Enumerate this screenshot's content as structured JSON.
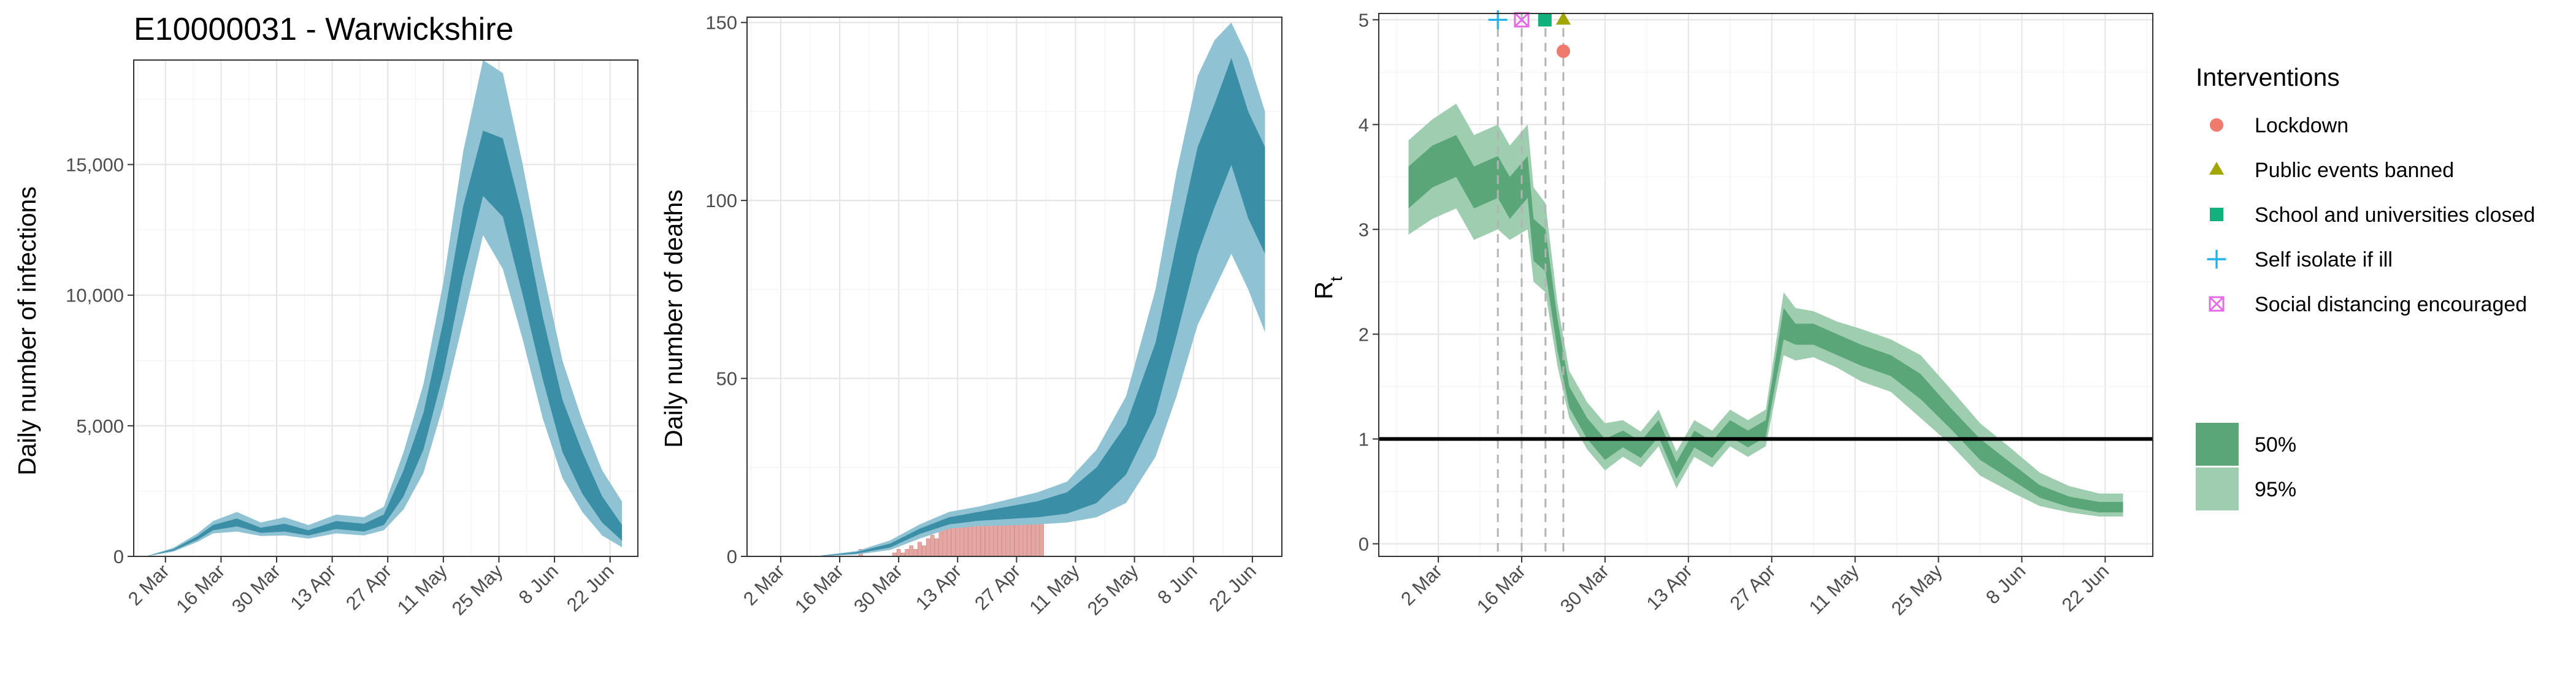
{
  "chart_data": [
    {
      "type": "area",
      "title": "E10000031 - Warwickshire",
      "xlabel": "",
      "ylabel": "Daily number of infections",
      "x_ticks": [
        "2 Mar",
        "16 Mar",
        "30 Mar",
        "13 Apr",
        "27 Apr",
        "11 May",
        "25 May",
        "8 Jun",
        "22 Jun"
      ],
      "y_ticks": [
        "0",
        "5,000",
        "10,000",
        "15,000"
      ],
      "ylim": [
        0,
        19000
      ],
      "grid": true,
      "colors": {
        "band_95": "#8fc2d3",
        "band_50": "#3a8ea6"
      },
      "series": [
        {
          "x": [
            "2020-02-26",
            "2020-03-04",
            "2020-03-10",
            "2020-03-14",
            "2020-03-20",
            "2020-03-26",
            "2020-04-01",
            "2020-04-07",
            "2020-04-14",
            "2020-04-21",
            "2020-04-26",
            "2020-05-01",
            "2020-05-06",
            "2020-05-11",
            "2020-05-16",
            "2020-05-21",
            "2020-05-26",
            "2020-05-31",
            "2020-06-05",
            "2020-06-10",
            "2020-06-15",
            "2020-06-20",
            "2020-06-25"
          ],
          "median": [
            0,
            250,
            700,
            1100,
            1300,
            1000,
            1100,
            900,
            1200,
            1100,
            1400,
            2800,
            4800,
            8000,
            12000,
            15000,
            14500,
            11500,
            8000,
            5000,
            3200,
            1800,
            900
          ],
          "lo50": [
            0,
            220,
            630,
            1000,
            1150,
            900,
            950,
            800,
            1050,
            950,
            1200,
            2300,
            4100,
            7000,
            10700,
            13800,
            13000,
            10000,
            6800,
            4000,
            2400,
            1300,
            600
          ],
          "hi50": [
            0,
            280,
            770,
            1200,
            1450,
            1100,
            1250,
            1000,
            1350,
            1250,
            1600,
            3300,
            5500,
            9000,
            13400,
            16300,
            16000,
            13000,
            9200,
            6000,
            4000,
            2300,
            1200
          ],
          "lo95": [
            0,
            180,
            550,
            880,
            950,
            780,
            800,
            680,
            880,
            800,
            1000,
            1800,
            3200,
            5800,
            9000,
            12300,
            11000,
            8300,
            5300,
            3000,
            1700,
            800,
            350
          ],
          "hi95": [
            0,
            330,
            870,
            1350,
            1700,
            1300,
            1500,
            1200,
            1600,
            1500,
            1900,
            4000,
            6600,
            10500,
            15500,
            19000,
            18500,
            15000,
            11000,
            7500,
            5200,
            3300,
            2100
          ]
        }
      ]
    },
    {
      "type": "area",
      "title": "",
      "xlabel": "",
      "ylabel": "Daily number of deaths",
      "x_ticks": [
        "2 Mar",
        "16 Mar",
        "30 Mar",
        "13 Apr",
        "27 Apr",
        "11 May",
        "25 May",
        "8 Jun",
        "22 Jun"
      ],
      "y_ticks": [
        "0",
        "50",
        "100",
        "150"
      ],
      "ylim": [
        0,
        150
      ],
      "grid": true,
      "colors": {
        "band_95": "#8fc2d3",
        "band_50": "#3a8ea6",
        "observed_bars": "#e6a6a1"
      },
      "series": [
        {
          "x": [
            "2020-03-10",
            "2020-03-20",
            "2020-03-28",
            "2020-04-04",
            "2020-04-11",
            "2020-04-18",
            "2020-04-25",
            "2020-05-02",
            "2020-05-09",
            "2020-05-16",
            "2020-05-23",
            "2020-05-30",
            "2020-06-04",
            "2020-06-09",
            "2020-06-13",
            "2020-06-17",
            "2020-06-21",
            "2020-06-25"
          ],
          "median": [
            0,
            1,
            3,
            7,
            10,
            11,
            12,
            13,
            15,
            20,
            30,
            50,
            75,
            100,
            112,
            125,
            110,
            100
          ],
          "lo50": [
            0,
            0.8,
            2.5,
            6.3,
            9,
            10,
            10.5,
            11,
            12,
            15,
            23,
            40,
            62,
            85,
            98,
            110,
            95,
            85
          ],
          "hi50": [
            0,
            1.2,
            3.6,
            7.8,
            11,
            12.5,
            14,
            15.5,
            18,
            25,
            37,
            60,
            88,
            115,
            127,
            140,
            125,
            115
          ],
          "lo95": [
            0,
            0.5,
            1.8,
            5,
            7.8,
            8.5,
            8.7,
            9,
            9.5,
            11,
            15,
            28,
            45,
            65,
            75,
            85,
            75,
            63
          ],
          "hi95": [
            0,
            1.5,
            4.5,
            9,
            12.5,
            14,
            16,
            18,
            21,
            30,
            45,
            75,
            108,
            135,
            145,
            150,
            140,
            125
          ]
        }
      ],
      "observed_deaths": {
        "x": [
          "2020-03-21",
          "2020-03-29",
          "2020-03-30",
          "2020-03-31",
          "2020-04-01",
          "2020-04-02",
          "2020-04-03",
          "2020-04-04",
          "2020-04-05",
          "2020-04-06",
          "2020-04-07",
          "2020-04-08",
          "2020-04-09",
          "2020-04-10",
          "2020-04-11",
          "2020-04-12",
          "2020-04-13",
          "2020-04-14",
          "2020-04-15",
          "2020-04-16",
          "2020-04-17",
          "2020-04-18",
          "2020-04-19",
          "2020-04-20",
          "2020-04-21",
          "2020-04-22",
          "2020-04-23",
          "2020-04-24",
          "2020-04-25",
          "2020-04-26",
          "2020-04-27",
          "2020-04-28",
          "2020-04-29",
          "2020-04-30",
          "2020-05-01",
          "2020-05-02",
          "2020-05-03"
        ],
        "values": [
          2,
          1,
          2,
          1,
          2,
          3,
          2,
          4,
          3,
          5,
          6,
          5,
          7,
          8,
          9,
          10,
          9,
          11,
          10,
          12,
          11,
          10,
          12,
          11,
          10,
          12,
          11,
          12,
          10,
          11,
          12,
          11,
          10,
          12,
          11,
          10,
          11
        ]
      }
    },
    {
      "type": "line",
      "title": "",
      "xlabel": "",
      "ylabel": "Rt",
      "x_ticks": [
        "2 Mar",
        "16 Mar",
        "30 Mar",
        "13 Apr",
        "27 Apr",
        "11 May",
        "25 May",
        "8 Jun",
        "22 Jun"
      ],
      "y_ticks": [
        "0",
        "1",
        "2",
        "3",
        "4",
        "5"
      ],
      "ylim": [
        0,
        5
      ],
      "grid": true,
      "reference_line": 1,
      "colors": {
        "band_95": "#9fcdb0",
        "band_50": "#5aa679",
        "reference_line": "#000000",
        "intervention_lines": "#b3b3b3"
      },
      "series": [
        {
          "x": [
            "2020-02-26",
            "2020-03-01",
            "2020-03-05",
            "2020-03-08",
            "2020-03-12",
            "2020-03-14",
            "2020-03-17",
            "2020-03-18",
            "2020-03-20",
            "2020-03-22",
            "2020-03-24",
            "2020-03-27",
            "2020-03-30",
            "2020-04-02",
            "2020-04-05",
            "2020-04-08",
            "2020-04-11",
            "2020-04-14",
            "2020-04-17",
            "2020-04-20",
            "2020-04-23",
            "2020-04-26",
            "2020-04-29",
            "2020-05-01",
            "2020-05-04",
            "2020-05-08",
            "2020-05-12",
            "2020-05-17",
            "2020-05-22",
            "2020-05-27",
            "2020-06-01",
            "2020-06-06",
            "2020-06-11",
            "2020-06-16",
            "2020-06-21",
            "2020-06-25"
          ],
          "median": [
            3.4,
            3.6,
            3.7,
            3.4,
            3.5,
            3.3,
            3.5,
            2.9,
            2.8,
            2.0,
            1.4,
            1.1,
            0.9,
            1.0,
            0.9,
            1.1,
            0.7,
            1.0,
            0.9,
            1.1,
            1.0,
            1.1,
            2.1,
            2.0,
            2.0,
            1.9,
            1.8,
            1.7,
            1.5,
            1.2,
            0.9,
            0.7,
            0.5,
            0.4,
            0.35,
            0.35
          ],
          "lo50": [
            3.2,
            3.4,
            3.5,
            3.2,
            3.3,
            3.1,
            3.3,
            2.7,
            2.6,
            1.85,
            1.3,
            1.0,
            0.8,
            0.92,
            0.82,
            1.02,
            0.62,
            0.92,
            0.82,
            1.02,
            0.92,
            1.02,
            1.95,
            1.9,
            1.9,
            1.8,
            1.7,
            1.6,
            1.38,
            1.1,
            0.8,
            0.62,
            0.44,
            0.35,
            0.3,
            0.3
          ],
          "hi50": [
            3.6,
            3.8,
            3.9,
            3.6,
            3.7,
            3.5,
            3.7,
            3.1,
            3.0,
            2.15,
            1.5,
            1.2,
            1.0,
            1.08,
            0.98,
            1.18,
            0.78,
            1.08,
            0.98,
            1.18,
            1.08,
            1.18,
            2.25,
            2.1,
            2.1,
            2.0,
            1.9,
            1.8,
            1.62,
            1.3,
            1.0,
            0.78,
            0.56,
            0.45,
            0.4,
            0.4
          ],
          "lo95": [
            2.95,
            3.1,
            3.2,
            2.9,
            3.0,
            2.9,
            3.0,
            2.5,
            2.4,
            1.7,
            1.2,
            0.9,
            0.7,
            0.83,
            0.73,
            0.93,
            0.53,
            0.83,
            0.73,
            0.93,
            0.83,
            0.93,
            1.8,
            1.75,
            1.78,
            1.68,
            1.55,
            1.45,
            1.2,
            0.95,
            0.65,
            0.5,
            0.36,
            0.3,
            0.26,
            0.26
          ],
          "hi95": [
            3.85,
            4.05,
            4.2,
            3.9,
            4.0,
            3.8,
            4.0,
            3.4,
            3.25,
            2.3,
            1.65,
            1.35,
            1.15,
            1.18,
            1.07,
            1.28,
            0.88,
            1.18,
            1.08,
            1.28,
            1.18,
            1.28,
            2.4,
            2.25,
            2.22,
            2.12,
            2.05,
            1.95,
            1.8,
            1.48,
            1.15,
            0.92,
            0.68,
            0.55,
            0.48,
            0.48
          ]
        }
      ],
      "interventions": [
        {
          "name": "Lockdown",
          "date": "2020-03-23",
          "color": "#f07b6c",
          "shape": "circle",
          "y": 4.7
        },
        {
          "name": "Public events banned",
          "date": "2020-03-23",
          "color": "#a3a500",
          "shape": "triangle",
          "y": 5.0
        },
        {
          "name": "School and universities closed",
          "date": "2020-03-20",
          "color": "#10b17d",
          "shape": "square",
          "y": 5.0
        },
        {
          "name": "Self isolate if ill",
          "date": "2020-03-12",
          "color": "#21b4ec",
          "shape": "plus",
          "y": 5.0
        },
        {
          "name": "Social distancing encouraged",
          "date": "2020-03-16",
          "color": "#e46ce7",
          "shape": "boxcross",
          "y": 5.0
        }
      ],
      "legend": {
        "title": "Interventions",
        "placement": "right",
        "bands": [
          {
            "label": "50%",
            "color": "#5aa679"
          },
          {
            "label": "95%",
            "color": "#9fcdb0"
          }
        ]
      }
    }
  ]
}
